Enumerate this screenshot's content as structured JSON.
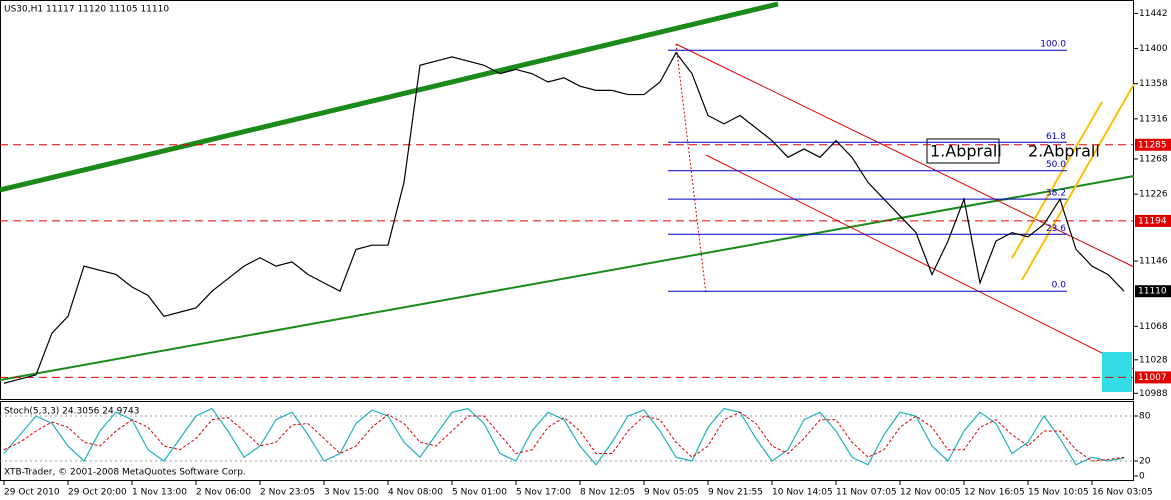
{
  "chart_data": [
    {
      "type": "line",
      "title": "US30,H1  11117 11120 11105 11110",
      "categories": [
        "29 Oct 2010",
        null,
        null,
        null,
        "29 Oct 20:00",
        null,
        null,
        null,
        "1 Nov 13:00",
        null,
        null,
        null,
        "2 Nov 06:00",
        null,
        null,
        null,
        "2 Nov 23:05",
        null,
        null,
        null,
        "3 Nov 15:00",
        null,
        null,
        null,
        "4 Nov 08:00",
        null,
        null,
        null,
        "5 Nov 01:00",
        null,
        null,
        null,
        "5 Nov 17:00",
        null,
        null,
        null,
        "8 Nov 12:05",
        null,
        null,
        null,
        "9 Nov 05:05",
        null,
        null,
        null,
        "9 Nov 21:55",
        null,
        null,
        null,
        "10 Nov 14:05",
        null,
        null,
        null,
        "11 Nov 07:05",
        null,
        null,
        null,
        "12 Nov 00:05",
        null,
        null,
        null,
        "12 Nov 16:05",
        null,
        null,
        null,
        "15 Nov 10:05",
        null,
        null,
        null,
        "16 Nov 03:05",
        null,
        null
      ],
      "values": [
        11000,
        11005,
        11010,
        11060,
        11080,
        11140,
        11135,
        11130,
        11115,
        11105,
        11080,
        11085,
        11090,
        11110,
        11125,
        11140,
        11150,
        11140,
        11145,
        11130,
        11120,
        11110,
        11160,
        11165,
        11165,
        11240,
        11380,
        11385,
        11390,
        11385,
        11380,
        11370,
        11375,
        11370,
        11360,
        11365,
        11355,
        11350,
        11350,
        11345,
        11345,
        11360,
        11395,
        11370,
        11320,
        11310,
        11320,
        11305,
        11290,
        11270,
        11280,
        11270,
        11290,
        11270,
        11240,
        11220,
        11200,
        11180,
        11130,
        11170,
        11220,
        11120,
        11170,
        11180,
        11175,
        11190,
        11220,
        11160,
        11140,
        11130,
        11110
      ],
      "color": "#000000",
      "ylim": [
        10980,
        11458
      ],
      "yticks": [
        10988,
        11028,
        11068,
        11146,
        11226,
        11268,
        11316,
        11358,
        11400,
        11442
      ],
      "hlines": [
        11285,
        11194,
        11007
      ],
      "hline_color": "#e00000",
      "current_price": 11110,
      "fibonacci": [
        {
          "label": "100.0",
          "value": 11398
        },
        {
          "label": "61.8",
          "value": 11288
        },
        {
          "label": "50.0",
          "value": 11254
        },
        {
          "label": "38.2",
          "value": 11220
        },
        {
          "label": "23.6",
          "value": 11178
        },
        {
          "label": "0.0",
          "value": 11110
        }
      ],
      "fib_color": "#0000c0",
      "annotations": [
        "1.Abprall",
        "2.Abprall"
      ]
    },
    {
      "type": "line",
      "title": "Stoch(5,3,3) 24.3056 24.9743",
      "ylim": [
        0,
        100
      ],
      "yticks": [
        0,
        20,
        80
      ],
      "series": [
        {
          "color": "#20b0c0",
          "values": [
            30,
            55,
            80,
            70,
            40,
            20,
            60,
            85,
            75,
            35,
            20,
            50,
            80,
            90,
            60,
            25,
            40,
            75,
            85,
            55,
            20,
            30,
            70,
            88,
            80,
            45,
            25,
            55,
            85,
            90,
            70,
            30,
            20,
            60,
            85,
            75,
            40,
            15,
            45,
            80,
            88,
            60,
            25,
            20,
            65,
            90,
            85,
            50,
            20,
            35,
            75,
            85,
            60,
            25,
            15,
            55,
            85,
            80,
            40,
            20,
            60,
            85,
            70,
            30,
            45,
            80,
            50,
            15,
            25,
            20,
            24
          ]
        },
        {
          "color": "#e00000",
          "values": [
            35,
            45,
            60,
            72,
            65,
            45,
            40,
            60,
            75,
            65,
            40,
            35,
            50,
            75,
            78,
            60,
            40,
            45,
            68,
            70,
            50,
            30,
            40,
            65,
            82,
            70,
            45,
            40,
            60,
            80,
            80,
            55,
            30,
            35,
            65,
            78,
            60,
            30,
            30,
            60,
            80,
            75,
            45,
            25,
            40,
            75,
            85,
            70,
            40,
            30,
            50,
            75,
            75,
            45,
            25,
            35,
            65,
            80,
            65,
            35,
            35,
            65,
            75,
            55,
            40,
            60,
            60,
            35,
            20,
            22,
            25
          ]
        }
      ]
    }
  ],
  "footer": "XTB-Trader, © 2001-2008 MetaQuotes Software Corp."
}
